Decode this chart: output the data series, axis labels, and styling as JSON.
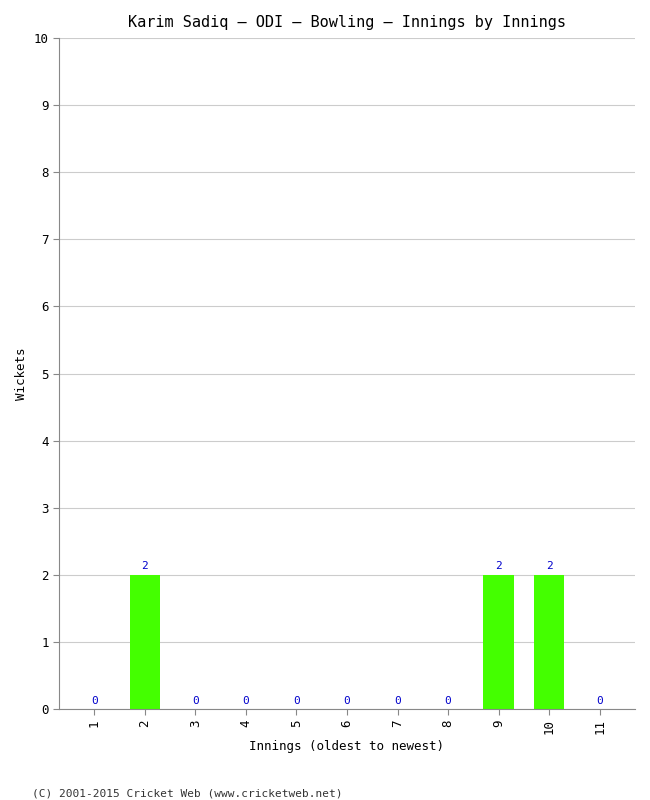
{
  "title": "Karim Sadiq – ODI – Bowling – Innings by Innings",
  "xlabel": "Innings (oldest to newest)",
  "ylabel": "Wickets",
  "categories": [
    "1",
    "2",
    "3",
    "4",
    "5",
    "6",
    "7",
    "8",
    "9",
    "10",
    "11"
  ],
  "values": [
    0,
    2,
    0,
    0,
    0,
    0,
    0,
    0,
    2,
    2,
    0
  ],
  "bar_color": "#44ff00",
  "label_color": "#0000cc",
  "ylim": [
    0,
    10
  ],
  "yticks": [
    0,
    1,
    2,
    3,
    4,
    5,
    6,
    7,
    8,
    9,
    10
  ],
  "background_color": "#ffffff",
  "plot_bg_color": "#ffffff",
  "grid_color": "#cccccc",
  "footer": "(C) 2001-2015 Cricket Web (www.cricketweb.net)",
  "title_fontsize": 11,
  "axis_label_fontsize": 9,
  "tick_fontsize": 9,
  "annotation_fontsize": 8,
  "footer_fontsize": 8
}
